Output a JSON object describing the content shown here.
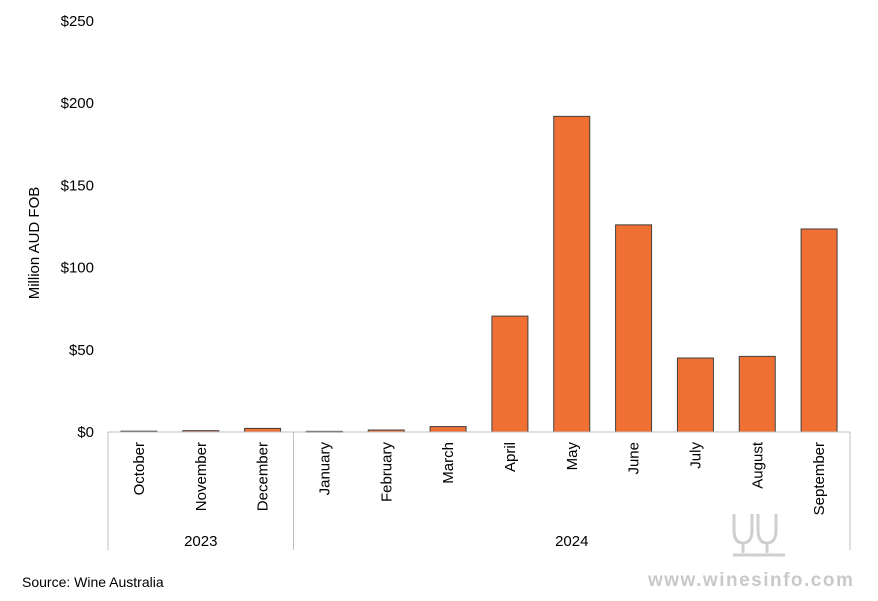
{
  "chart_data": {
    "type": "bar",
    "categories": [
      "October",
      "November",
      "December",
      "January",
      "February",
      "March",
      "April",
      "May",
      "June",
      "July",
      "August",
      "September"
    ],
    "values": [
      0.5,
      0.8,
      2.2,
      0.4,
      1.2,
      3.3,
      70.5,
      192,
      126,
      45,
      46,
      123.5
    ],
    "groups": [
      {
        "label": "2023",
        "count": 3
      },
      {
        "label": "2024",
        "count": 9
      }
    ],
    "ylabel": "Million AUD FOB",
    "ylim": [
      0,
      250
    ],
    "yticks": [
      0,
      50,
      100,
      150,
      200,
      250
    ],
    "ytick_labels": [
      "$0",
      "$50",
      "$100",
      "$150",
      "$200",
      "$250"
    ],
    "bar_color": "#f07033",
    "bar_edge_color": "#404040",
    "grid": false,
    "legend": "none"
  },
  "footer": {
    "source": "Source: Wine Australia"
  },
  "watermark": {
    "text": "www.winesinfo.com",
    "icon": "wine-glasses-logo-icon",
    "color": "#c9c9c9"
  }
}
